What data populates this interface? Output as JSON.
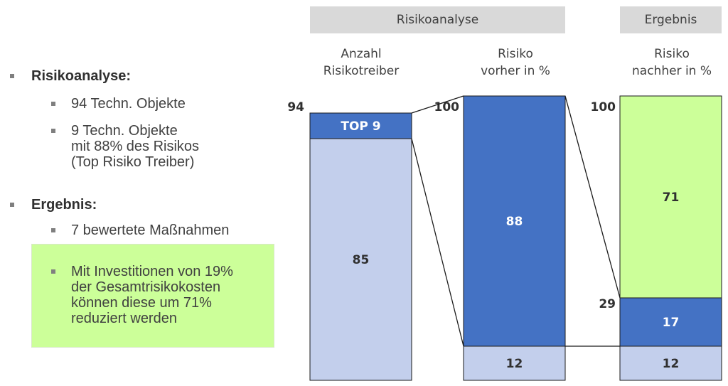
{
  "bullets": {
    "risk_heading": "Risikoanalyse:",
    "risk_items": [
      "94 Techn. Objekte",
      "9 Techn. Objekte\nmit 88% des Risikos\n(Top Risiko Treiber)"
    ],
    "result_heading": "Ergebnis:",
    "result_items": [
      "7 bewertete Maßnahmen"
    ],
    "highlight": "Mit Investitionen von 19%\nder Gesamtrisikokosten\nkönnen diese um 71%\nreduziert werden"
  },
  "headers": {
    "analysis": "Risikoanalyse",
    "result": "Ergebnis"
  },
  "columns": [
    {
      "head": "Anzahl\nRisikotreiber",
      "top_value": "94"
    },
    {
      "head": "Risiko\nvorher in %",
      "top_value": "100"
    },
    {
      "head": "Risiko\nnachher in %",
      "top_value": "100",
      "mid_value": "29"
    }
  ],
  "colors": {
    "dark_blue": "#4472c4",
    "light_blue": "#c3cfec",
    "green": "#ccff99",
    "header_gray": "#d9d9d9"
  },
  "chart_data": {
    "type": "bar",
    "stacked": true,
    "categories": [
      "Anzahl Risikotreiber",
      "Risiko vorher in %",
      "Risiko nachher in %"
    ],
    "series": [
      {
        "values": [
          85,
          12,
          12
        ],
        "labels": [
          "85",
          "12",
          "12"
        ],
        "color": "#c3cfec"
      },
      {
        "values": [
          9,
          88,
          17
        ],
        "labels": [
          "TOP 9",
          "88",
          "17"
        ],
        "color": "#4472c4"
      },
      {
        "values": [
          0,
          0,
          71
        ],
        "labels": [
          "",
          "",
          "71"
        ],
        "color": "#ccff99"
      }
    ],
    "totals": [
      94,
      100,
      100
    ]
  }
}
